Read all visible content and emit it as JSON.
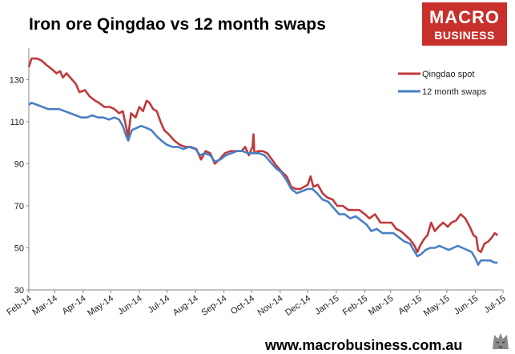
{
  "header": {
    "title": "Iron ore Qingdao vs 12 month swaps",
    "logo_line1": "MACRO",
    "logo_line2": "BUSINESS"
  },
  "footer": {
    "url": "www.macrobusiness.com.au"
  },
  "colors": {
    "spot": "#c0393b",
    "swaps": "#4a7fc4",
    "logo_bg": "#c8302c"
  },
  "chart_data": {
    "type": "line",
    "title": "Iron ore Qingdao vs 12 month swaps",
    "xlabel": "",
    "ylabel": "",
    "ylim": [
      30,
      145
    ],
    "yticks": [
      30,
      50,
      70,
      90,
      110,
      130
    ],
    "xlim": [
      "2014-02-01",
      "2015-07-01"
    ],
    "xticks": [
      {
        "label": "Feb-14",
        "date": "2014-02-01"
      },
      {
        "label": "Mar-14",
        "date": "2014-03-01"
      },
      {
        "label": "Apr-14",
        "date": "2014-04-01"
      },
      {
        "label": "May-14",
        "date": "2014-05-01"
      },
      {
        "label": "Jun-14",
        "date": "2014-06-01"
      },
      {
        "label": "Jul-14",
        "date": "2014-07-01"
      },
      {
        "label": "Aug-14",
        "date": "2014-08-01"
      },
      {
        "label": "Sep-14",
        "date": "2014-09-01"
      },
      {
        "label": "Oct-14",
        "date": "2014-10-01"
      },
      {
        "label": "Nov-14",
        "date": "2014-11-01"
      },
      {
        "label": "Dec-14",
        "date": "2014-12-01"
      },
      {
        "label": "Jan-15",
        "date": "2015-01-01"
      },
      {
        "label": "Feb-15",
        "date": "2015-02-01"
      },
      {
        "label": "Mar-15",
        "date": "2015-03-01"
      },
      {
        "label": "Apr-15",
        "date": "2015-04-01"
      },
      {
        "label": "May-15",
        "date": "2015-05-01"
      },
      {
        "label": "Jun-15",
        "date": "2015-06-01"
      },
      {
        "label": "Jul-15",
        "date": "2015-07-01"
      }
    ],
    "grid": false,
    "legend_position": "top-right",
    "series": [
      {
        "name": "Qingdao spot",
        "color": "#c0393b",
        "points": [
          [
            "2014-02-01",
            136
          ],
          [
            "2014-02-04",
            140
          ],
          [
            "2014-02-10",
            140
          ],
          [
            "2014-02-15",
            139
          ],
          [
            "2014-02-20",
            137
          ],
          [
            "2014-02-26",
            135
          ],
          [
            "2014-03-03",
            133
          ],
          [
            "2014-03-07",
            134
          ],
          [
            "2014-03-10",
            131
          ],
          [
            "2014-03-14",
            133
          ],
          [
            "2014-03-18",
            131
          ],
          [
            "2014-03-24",
            128
          ],
          [
            "2014-03-28",
            124
          ],
          [
            "2014-04-03",
            125
          ],
          [
            "2014-04-08",
            122
          ],
          [
            "2014-04-14",
            120
          ],
          [
            "2014-04-18",
            119
          ],
          [
            "2014-04-24",
            117
          ],
          [
            "2014-04-30",
            117
          ],
          [
            "2014-05-05",
            116
          ],
          [
            "2014-05-10",
            114
          ],
          [
            "2014-05-14",
            115
          ],
          [
            "2014-05-18",
            107
          ],
          [
            "2014-05-20",
            103
          ],
          [
            "2014-05-23",
            114
          ],
          [
            "2014-05-28",
            112
          ],
          [
            "2014-06-01",
            117
          ],
          [
            "2014-06-05",
            115
          ],
          [
            "2014-06-09",
            120
          ],
          [
            "2014-06-12",
            119
          ],
          [
            "2014-06-16",
            116
          ],
          [
            "2014-06-20",
            115
          ],
          [
            "2014-06-24",
            110
          ],
          [
            "2014-06-28",
            106
          ],
          [
            "2014-07-03",
            104
          ],
          [
            "2014-07-09",
            101
          ],
          [
            "2014-07-15",
            99
          ],
          [
            "2014-07-21",
            98
          ],
          [
            "2014-07-27",
            98
          ],
          [
            "2014-08-02",
            97
          ],
          [
            "2014-08-07",
            92
          ],
          [
            "2014-08-12",
            96
          ],
          [
            "2014-08-17",
            95
          ],
          [
            "2014-08-22",
            90
          ],
          [
            "2014-08-27",
            92
          ],
          [
            "2014-09-02",
            95
          ],
          [
            "2014-09-08",
            96
          ],
          [
            "2014-09-14",
            96
          ],
          [
            "2014-09-20",
            96
          ],
          [
            "2014-09-24",
            98
          ],
          [
            "2014-09-28",
            94
          ],
          [
            "2014-10-02",
            98
          ],
          [
            "2014-10-03",
            104
          ],
          [
            "2014-10-04",
            95
          ],
          [
            "2014-10-08",
            96
          ],
          [
            "2014-10-13",
            96
          ],
          [
            "2014-10-18",
            95
          ],
          [
            "2014-10-23",
            92
          ],
          [
            "2014-10-28",
            89
          ],
          [
            "2014-11-03",
            86
          ],
          [
            "2014-11-08",
            84
          ],
          [
            "2014-11-13",
            79
          ],
          [
            "2014-11-18",
            78
          ],
          [
            "2014-11-23",
            78
          ],
          [
            "2014-11-27",
            79
          ],
          [
            "2014-12-01",
            80
          ],
          [
            "2014-12-04",
            84
          ],
          [
            "2014-12-07",
            79
          ],
          [
            "2014-12-12",
            80
          ],
          [
            "2014-12-17",
            76
          ],
          [
            "2014-12-22",
            74
          ],
          [
            "2014-12-28",
            73
          ],
          [
            "2015-01-02",
            70
          ],
          [
            "2015-01-08",
            70
          ],
          [
            "2015-01-14",
            68
          ],
          [
            "2015-01-20",
            68
          ],
          [
            "2015-01-26",
            68
          ],
          [
            "2015-02-01",
            66
          ],
          [
            "2015-02-06",
            64
          ],
          [
            "2015-02-12",
            66
          ],
          [
            "2015-02-18",
            62
          ],
          [
            "2015-02-24",
            62
          ],
          [
            "2015-03-02",
            62
          ],
          [
            "2015-03-07",
            59
          ],
          [
            "2015-03-12",
            58
          ],
          [
            "2015-03-17",
            56
          ],
          [
            "2015-03-22",
            54
          ],
          [
            "2015-03-27",
            51
          ],
          [
            "2015-03-30",
            48
          ],
          [
            "2015-04-02",
            51
          ],
          [
            "2015-04-06",
            54
          ],
          [
            "2015-04-10",
            56
          ],
          [
            "2015-04-14",
            62
          ],
          [
            "2015-04-18",
            58
          ],
          [
            "2015-04-22",
            60
          ],
          [
            "2015-04-27",
            62
          ],
          [
            "2015-05-02",
            60
          ],
          [
            "2015-05-06",
            62
          ],
          [
            "2015-05-11",
            63
          ],
          [
            "2015-05-16",
            66
          ],
          [
            "2015-05-21",
            64
          ],
          [
            "2015-05-26",
            60
          ],
          [
            "2015-05-30",
            56
          ],
          [
            "2015-06-02",
            55
          ],
          [
            "2015-06-04",
            49
          ],
          [
            "2015-06-07",
            48
          ],
          [
            "2015-06-11",
            52
          ],
          [
            "2015-06-15",
            53
          ],
          [
            "2015-06-19",
            55
          ],
          [
            "2015-06-22",
            57
          ],
          [
            "2015-06-25",
            56
          ]
        ]
      },
      {
        "name": "12 month swaps",
        "color": "#4a7fc4",
        "points": [
          [
            "2014-02-01",
            118
          ],
          [
            "2014-02-04",
            119
          ],
          [
            "2014-02-10",
            118
          ],
          [
            "2014-02-16",
            117
          ],
          [
            "2014-02-22",
            116
          ],
          [
            "2014-02-28",
            116
          ],
          [
            "2014-03-06",
            116
          ],
          [
            "2014-03-12",
            115
          ],
          [
            "2014-03-18",
            114
          ],
          [
            "2014-03-24",
            113
          ],
          [
            "2014-03-30",
            112
          ],
          [
            "2014-04-05",
            112
          ],
          [
            "2014-04-11",
            113
          ],
          [
            "2014-04-17",
            112
          ],
          [
            "2014-04-23",
            112
          ],
          [
            "2014-04-29",
            111
          ],
          [
            "2014-05-05",
            112
          ],
          [
            "2014-05-10",
            111
          ],
          [
            "2014-05-14",
            108
          ],
          [
            "2014-05-18",
            103
          ],
          [
            "2014-05-20",
            101
          ],
          [
            "2014-05-24",
            106
          ],
          [
            "2014-05-29",
            107
          ],
          [
            "2014-06-03",
            108
          ],
          [
            "2014-06-09",
            107
          ],
          [
            "2014-06-14",
            106
          ],
          [
            "2014-06-20",
            103
          ],
          [
            "2014-06-25",
            101
          ],
          [
            "2014-07-01",
            99
          ],
          [
            "2014-07-07",
            98
          ],
          [
            "2014-07-13",
            98
          ],
          [
            "2014-07-19",
            97
          ],
          [
            "2014-07-25",
            98
          ],
          [
            "2014-08-01",
            97
          ],
          [
            "2014-08-06",
            94
          ],
          [
            "2014-08-11",
            95
          ],
          [
            "2014-08-17",
            94
          ],
          [
            "2014-08-22",
            91
          ],
          [
            "2014-08-28",
            92
          ],
          [
            "2014-09-03",
            94
          ],
          [
            "2014-09-09",
            95
          ],
          [
            "2014-09-15",
            96
          ],
          [
            "2014-09-21",
            96
          ],
          [
            "2014-09-27",
            95
          ],
          [
            "2014-10-03",
            95
          ],
          [
            "2014-10-09",
            95
          ],
          [
            "2014-10-15",
            94
          ],
          [
            "2014-10-21",
            91
          ],
          [
            "2014-10-27",
            88
          ],
          [
            "2014-11-02",
            86
          ],
          [
            "2014-11-08",
            82
          ],
          [
            "2014-11-13",
            78
          ],
          [
            "2014-11-19",
            76
          ],
          [
            "2014-11-25",
            77
          ],
          [
            "2014-12-01",
            78
          ],
          [
            "2014-12-06",
            78
          ],
          [
            "2014-12-11",
            76
          ],
          [
            "2014-12-17",
            73
          ],
          [
            "2014-12-23",
            72
          ],
          [
            "2014-12-29",
            69
          ],
          [
            "2015-01-04",
            66
          ],
          [
            "2015-01-10",
            66
          ],
          [
            "2015-01-16",
            64
          ],
          [
            "2015-01-22",
            65
          ],
          [
            "2015-01-28",
            63
          ],
          [
            "2015-02-03",
            61
          ],
          [
            "2015-02-08",
            58
          ],
          [
            "2015-02-14",
            59
          ],
          [
            "2015-02-20",
            57
          ],
          [
            "2015-02-26",
            57
          ],
          [
            "2015-03-04",
            57
          ],
          [
            "2015-03-10",
            55
          ],
          [
            "2015-03-16",
            53
          ],
          [
            "2015-03-22",
            52
          ],
          [
            "2015-03-26",
            49
          ],
          [
            "2015-03-30",
            46
          ],
          [
            "2015-04-03",
            47
          ],
          [
            "2015-04-08",
            49
          ],
          [
            "2015-04-13",
            50
          ],
          [
            "2015-04-18",
            50
          ],
          [
            "2015-04-23",
            51
          ],
          [
            "2015-04-28",
            50
          ],
          [
            "2015-05-03",
            49
          ],
          [
            "2015-05-08",
            50
          ],
          [
            "2015-05-13",
            51
          ],
          [
            "2015-05-18",
            50
          ],
          [
            "2015-05-23",
            49
          ],
          [
            "2015-05-28",
            48
          ],
          [
            "2015-06-01",
            45
          ],
          [
            "2015-06-04",
            42
          ],
          [
            "2015-06-07",
            44
          ],
          [
            "2015-06-12",
            44
          ],
          [
            "2015-06-17",
            44
          ],
          [
            "2015-06-22",
            43
          ],
          [
            "2015-06-25",
            43
          ]
        ]
      }
    ]
  }
}
